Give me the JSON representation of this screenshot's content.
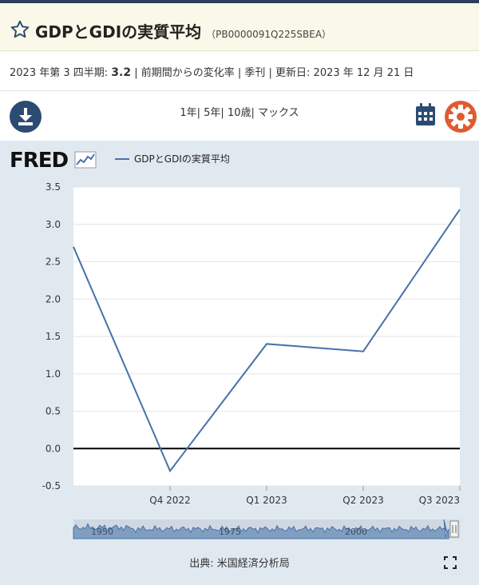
{
  "header": {
    "title": "GDPとGDIの実質平均",
    "series_id": "（PB0000091Q225SBEA）"
  },
  "meta": {
    "period": "2023 年第 3 四半期:",
    "value": "3.2",
    "rest": "| 前期間からの変化率 | 季刊 | 更新日: 2023 年 12 月 21 日"
  },
  "toolbar": {
    "ranges": [
      "1年",
      "5年",
      "10歳",
      "マックス"
    ],
    "separator": "|"
  },
  "logo_text": "FRED",
  "source": "出典: 米国経済分析局",
  "colors": {
    "series": "#4572a7",
    "zero_line": "#000000",
    "navigator": "#4572a7"
  },
  "icons": [
    "star-icon",
    "download-icon",
    "calendar-icon",
    "gear-icon",
    "fullscreen-icon"
  ],
  "chart_data": {
    "type": "line",
    "title": "",
    "xlabel": "",
    "ylabel": "",
    "legend": "GDPとGDIの実質平均",
    "categories": [
      "",
      "Q4 2022",
      "Q1 2023",
      "Q2 2023",
      "Q3 2023"
    ],
    "series": [
      {
        "name": "GDPとGDIの実質平均",
        "values": [
          2.7,
          -0.3,
          1.4,
          1.3,
          3.2
        ]
      }
    ],
    "ylim": [
      -0.5,
      3.5
    ],
    "yticks": [
      "-0.5",
      "0.0",
      "0.5",
      "1.0",
      "1.5",
      "2.0",
      "2.5",
      "3.0",
      "3.5"
    ],
    "grid": true,
    "navigator_labels": [
      "1950",
      "1975",
      "2000"
    ]
  }
}
